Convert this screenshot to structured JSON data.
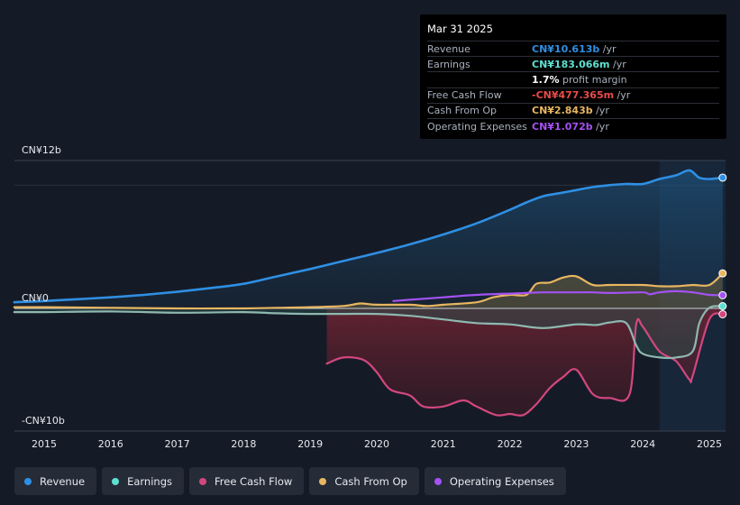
{
  "chart_data": {
    "type": "line",
    "title": "",
    "xlabel": "",
    "ylabel": "",
    "ylim": [
      -10,
      12
    ],
    "y_tick_labels": [
      "CN¥12b",
      "CN¥0",
      "-CN¥10b"
    ],
    "x_tick_labels": [
      "2015",
      "2016",
      "2017",
      "2018",
      "2019",
      "2020",
      "2021",
      "2022",
      "2023",
      "2024",
      "2025"
    ],
    "x_range": [
      2014.55,
      2025.25
    ],
    "forecast_start": 2024.25,
    "series": [
      {
        "name": "Revenue",
        "color": "#2f8fe3",
        "x": [
          2014.55,
          2015,
          2015.5,
          2016,
          2016.5,
          2017,
          2017.5,
          2018,
          2018.5,
          2019,
          2019.5,
          2020,
          2020.5,
          2021,
          2021.5,
          2022,
          2022.25,
          2022.5,
          2022.75,
          2023,
          2023.25,
          2023.5,
          2023.75,
          2024,
          2024.25,
          2024.5,
          2024.7,
          2024.85,
          2025,
          2025.2
        ],
        "values": [
          0.5,
          0.6,
          0.75,
          0.9,
          1.1,
          1.35,
          1.65,
          2.0,
          2.6,
          3.2,
          3.85,
          4.5,
          5.2,
          6.0,
          6.9,
          8.0,
          8.6,
          9.1,
          9.35,
          9.6,
          9.85,
          10.0,
          10.1,
          10.1,
          10.5,
          10.8,
          11.2,
          10.6,
          10.5,
          10.613
        ]
      },
      {
        "name": "Earnings",
        "color": "#5ee0d1",
        "x": [
          2014.55,
          2015,
          2016,
          2017,
          2018,
          2018.5,
          2019,
          2019.5,
          2020,
          2020.5,
          2021,
          2021.5,
          2022,
          2022.5,
          2023,
          2023.3,
          2023.5,
          2023.75,
          2023.9,
          2024,
          2024.25,
          2024.5,
          2024.75,
          2024.85,
          2025,
          2025.2
        ],
        "values": [
          -0.3,
          -0.3,
          -0.25,
          -0.35,
          -0.3,
          -0.4,
          -0.45,
          -0.45,
          -0.45,
          -0.6,
          -0.9,
          -1.2,
          -1.3,
          -1.6,
          -1.3,
          -1.35,
          -1.15,
          -1.2,
          -3.0,
          -3.7,
          -4.0,
          -4.0,
          -3.5,
          -1.2,
          0.05,
          0.183
        ]
      },
      {
        "name": "Free Cash Flow",
        "color": "#d2477e",
        "x": [
          2019.25,
          2019.5,
          2019.8,
          2020,
          2020.2,
          2020.5,
          2020.7,
          2021,
          2021.3,
          2021.5,
          2021.8,
          2022,
          2022.2,
          2022.4,
          2022.6,
          2022.8,
          2023,
          2023.25,
          2023.5,
          2023.8,
          2023.9,
          2024,
          2024.25,
          2024.5,
          2024.7,
          2024.75,
          2025,
          2025.2
        ],
        "values": [
          -4.5,
          -4.0,
          -4.2,
          -5.2,
          -6.6,
          -7.1,
          -8.0,
          -8.0,
          -7.5,
          -8.0,
          -8.7,
          -8.6,
          -8.7,
          -7.8,
          -6.5,
          -5.6,
          -5.0,
          -7.0,
          -7.3,
          -7.0,
          -1.3,
          -1.5,
          -3.5,
          -4.3,
          -5.8,
          -5.5,
          -0.9,
          -0.477
        ]
      },
      {
        "name": "Cash From Op",
        "color": "#e8b661",
        "x": [
          2014.55,
          2015,
          2016,
          2017,
          2018,
          2018.5,
          2019,
          2019.5,
          2019.75,
          2020,
          2020.5,
          2020.75,
          2021,
          2021.5,
          2021.75,
          2022,
          2022.25,
          2022.4,
          2022.6,
          2022.8,
          2023,
          2023.25,
          2023.5,
          2024,
          2024.25,
          2024.5,
          2024.75,
          2025,
          2025.2
        ],
        "values": [
          0.1,
          0.1,
          0.05,
          0.0,
          0.0,
          0.05,
          0.1,
          0.2,
          0.4,
          0.3,
          0.3,
          0.2,
          0.3,
          0.5,
          0.9,
          1.1,
          1.1,
          2.0,
          2.1,
          2.5,
          2.6,
          1.9,
          1.9,
          1.9,
          1.8,
          1.8,
          1.9,
          1.9,
          2.843
        ]
      },
      {
        "name": "Operating Expenses",
        "color": "#a452f2",
        "x": [
          2020.25,
          2020.5,
          2021,
          2021.5,
          2022,
          2022.25,
          2022.5,
          2023,
          2023.25,
          2023.5,
          2024,
          2024.1,
          2024.25,
          2024.5,
          2024.75,
          2025,
          2025.2
        ],
        "values": [
          0.6,
          0.7,
          0.9,
          1.1,
          1.2,
          1.25,
          1.3,
          1.3,
          1.3,
          1.25,
          1.3,
          1.15,
          1.3,
          1.4,
          1.3,
          1.1,
          1.072
        ]
      }
    ],
    "tooltip": {
      "date": "Mar 31 2025",
      "rows": [
        {
          "label": "Revenue",
          "value": "CN¥10.613b",
          "unit": " /yr",
          "color": "#2f8fe3"
        },
        {
          "label": "Earnings",
          "value": "CN¥183.066m",
          "unit": " /yr",
          "color": "#5ee0d1"
        },
        {
          "label": "",
          "value": "1.7%",
          "unit": " profit margin",
          "color": "#ffffff"
        },
        {
          "label": "Free Cash Flow",
          "value": "-CN¥477.365m",
          "unit": " /yr",
          "color": "#e84b4b"
        },
        {
          "label": "Cash From Op",
          "value": "CN¥2.843b",
          "unit": " /yr",
          "color": "#e8b661"
        },
        {
          "label": "Operating Expenses",
          "value": "CN¥1.072b",
          "unit": " /yr",
          "color": "#a452f2"
        }
      ]
    },
    "legend": [
      {
        "label": "Revenue",
        "color": "#2f8fe3"
      },
      {
        "label": "Earnings",
        "color": "#5ee0d1"
      },
      {
        "label": "Free Cash Flow",
        "color": "#d2477e"
      },
      {
        "label": "Cash From Op",
        "color": "#e8b661"
      },
      {
        "label": "Operating Expenses",
        "color": "#a452f2"
      }
    ]
  }
}
